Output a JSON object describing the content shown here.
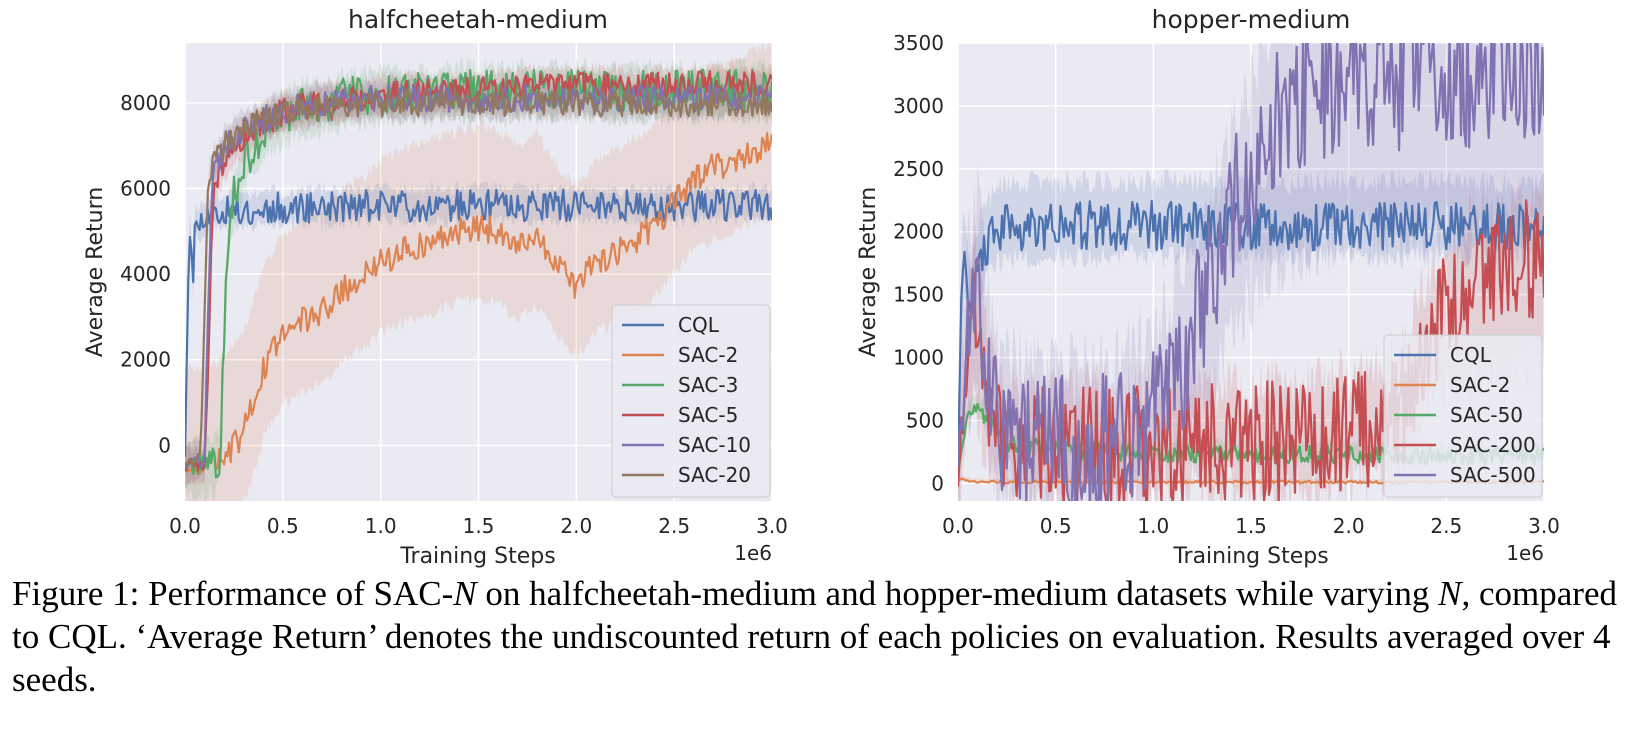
{
  "caption": {
    "p1": "Figure 1: Performance of SAC-",
    "n1": "N",
    "p2": " on halfcheetah-medium and hopper-medium datasets while varying ",
    "n2": "N",
    "p3": ", compared to CQL. ‘Average Return’ denotes the undiscounted return of each policies on evaluation. Results averaged over 4 seeds."
  },
  "chart_data": [
    {
      "type": "line",
      "title": "halfcheetah-medium",
      "xlabel": "Training Steps",
      "ylabel": "Average Return",
      "x_offset_label": "1e6",
      "xlim": [
        0,
        3.0
      ],
      "ylim": [
        -1300,
        9400
      ],
      "x_ticks": [
        "0.0",
        "0.5",
        "1.0",
        "1.5",
        "2.0",
        "2.5",
        "3.0"
      ],
      "x_tick_values": [
        0,
        0.5,
        1.0,
        1.5,
        2.0,
        2.5,
        3.0
      ],
      "y_ticks": [
        "0",
        "2000",
        "4000",
        "6000",
        "8000"
      ],
      "y_tick_values": [
        0,
        2000,
        4000,
        6000,
        8000
      ],
      "grid": true,
      "legend_position": "lower-right",
      "series": [
        {
          "name": "CQL",
          "color": "#4c72b0",
          "x": [
            0,
            0.02,
            0.03,
            0.04,
            0.05,
            0.1,
            0.2,
            0.5,
            1.0,
            1.5,
            2.0,
            2.5,
            3.0
          ],
          "y": [
            -200,
            4800,
            5100,
            3500,
            5100,
            5350,
            5450,
            5550,
            5600,
            5600,
            5600,
            5600,
            5600
          ],
          "band": [
            200,
            150
          ]
        },
        {
          "name": "SAC-2",
          "color": "#dd8452",
          "x": [
            0,
            0.1,
            0.2,
            0.3,
            0.4,
            0.5,
            0.6,
            0.7,
            0.8,
            0.9,
            1.0,
            1.1,
            1.2,
            1.3,
            1.4,
            1.5,
            1.6,
            1.7,
            1.8,
            1.9,
            2.0,
            2.1,
            2.2,
            2.3,
            2.4,
            2.5,
            2.6,
            2.7,
            2.8,
            2.9,
            3.0
          ],
          "y": [
            -500,
            -500,
            -300,
            300,
            1800,
            2600,
            2900,
            3100,
            3600,
            3900,
            4300,
            4500,
            4700,
            4800,
            5000,
            5100,
            5000,
            4600,
            4900,
            4200,
            3700,
            4300,
            4500,
            4800,
            5100,
            5700,
            6200,
            6500,
            6600,
            6900,
            7000
          ],
          "band": [
            2200,
            1500
          ]
        },
        {
          "name": "SAC-3",
          "color": "#55a868",
          "x": [
            0,
            0.1,
            0.15,
            0.18,
            0.2,
            0.22,
            0.25,
            0.3,
            0.4,
            0.5,
            0.6,
            0.8,
            1.0,
            1.5,
            2.0,
            2.5,
            3.0
          ],
          "y": [
            -500,
            -500,
            -400,
            -300,
            2500,
            4800,
            5800,
            6600,
            7300,
            7700,
            7900,
            8100,
            8200,
            8300,
            8300,
            8300,
            8300
          ],
          "band": [
            300,
            400
          ]
        },
        {
          "name": "SAC-5",
          "color": "#c44e52",
          "x": [
            0,
            0.1,
            0.12,
            0.14,
            0.16,
            0.2,
            0.3,
            0.5,
            0.7,
            1.0,
            1.5,
            2.0,
            2.5,
            3.0
          ],
          "y": [
            -500,
            -400,
            2000,
            5500,
            6200,
            6700,
            7200,
            7800,
            8000,
            8200,
            8300,
            8400,
            8400,
            8450
          ],
          "band": [
            250,
            300
          ]
        },
        {
          "name": "SAC-10",
          "color": "#8172b2",
          "x": [
            0,
            0.1,
            0.12,
            0.14,
            0.16,
            0.2,
            0.3,
            0.5,
            0.7,
            1.0,
            1.5,
            2.0,
            2.5,
            3.0
          ],
          "y": [
            -450,
            -300,
            3500,
            6200,
            6500,
            6900,
            7400,
            7800,
            8000,
            8100,
            8100,
            8100,
            8100,
            8150
          ],
          "band": [
            250,
            250
          ]
        },
        {
          "name": "SAC-20",
          "color": "#937860",
          "x": [
            0,
            0.08,
            0.1,
            0.12,
            0.15,
            0.2,
            0.3,
            0.5,
            0.7,
            1.0,
            1.5,
            2.0,
            2.5,
            3.0
          ],
          "y": [
            -500,
            -300,
            3000,
            6300,
            6600,
            7000,
            7400,
            7750,
            7900,
            8000,
            8000,
            8000,
            8000,
            8000
          ],
          "band": [
            250,
            200
          ]
        }
      ]
    },
    {
      "type": "line",
      "title": "hopper-medium",
      "xlabel": "Training Steps",
      "ylabel": "Average Return",
      "x_offset_label": "1e6",
      "xlim": [
        0,
        3.0
      ],
      "ylim": [
        -140,
        3500
      ],
      "x_ticks": [
        "0.0",
        "0.5",
        "1.0",
        "1.5",
        "2.0",
        "2.5",
        "3.0"
      ],
      "x_tick_values": [
        0,
        0.5,
        1.0,
        1.5,
        2.0,
        2.5,
        3.0
      ],
      "y_ticks": [
        "0",
        "500",
        "1000",
        "1500",
        "2000",
        "2500",
        "3000",
        "3500"
      ],
      "y_tick_values": [
        0,
        500,
        1000,
        1500,
        2000,
        2500,
        3000,
        3500
      ],
      "grid": true,
      "legend_position": "lower-right",
      "series": [
        {
          "name": "CQL",
          "color": "#4c72b0",
          "x": [
            0,
            0.02,
            0.04,
            0.06,
            0.1,
            0.15,
            0.2,
            0.3,
            0.5,
            1.0,
            1.5,
            2.0,
            2.5,
            3.0
          ],
          "y": [
            50,
            1700,
            1800,
            1300,
            1700,
            1900,
            2000,
            2050,
            2050,
            2050,
            2050,
            2050,
            2050,
            2050
          ],
          "band": [
            250,
            150
          ]
        },
        {
          "name": "SAC-2",
          "color": "#dd8452",
          "x": [
            0,
            0.02,
            0.05,
            0.1,
            0.5,
            1.0,
            1.5,
            2.0,
            2.5,
            3.0
          ],
          "y": [
            20,
            40,
            20,
            10,
            10,
            10,
            10,
            10,
            10,
            10
          ],
          "band": [
            20,
            0
          ]
        },
        {
          "name": "SAC-50",
          "color": "#55a868",
          "x": [
            0,
            0.05,
            0.1,
            0.15,
            0.2,
            0.25,
            0.3,
            0.5,
            1.0,
            1.5,
            2.0,
            2.5,
            3.0
          ],
          "y": [
            100,
            550,
            600,
            500,
            420,
            330,
            300,
            270,
            240,
            230,
            230,
            220,
            220
          ],
          "band": [
            60,
            0
          ]
        },
        {
          "name": "SAC-200",
          "color": "#c44e52",
          "x": [
            0,
            0.05,
            0.08,
            0.1,
            0.15,
            0.2,
            0.3,
            0.5,
            1.0,
            1.5,
            1.8,
            1.9,
            2.0,
            2.1,
            2.2,
            2.3,
            2.4,
            2.5,
            2.6,
            2.7,
            2.8,
            2.9,
            3.0
          ],
          "y": [
            100,
            1000,
            1500,
            1200,
            700,
            400,
            300,
            280,
            290,
            310,
            330,
            350,
            380,
            420,
            500,
            700,
            1200,
            1400,
            1600,
            1700,
            1750,
            1800,
            1850
          ],
          "band": [
            200,
            0.35
          ]
        },
        {
          "name": "SAC-500",
          "color": "#8172b2",
          "x": [
            0,
            0.05,
            0.1,
            0.15,
            0.2,
            0.3,
            0.5,
            0.8,
            1.0,
            1.1,
            1.2,
            1.3,
            1.4,
            1.5,
            1.6,
            1.7,
            1.8,
            1.9,
            2.0,
            2.1,
            2.2,
            2.4,
            2.6,
            2.8,
            3.0
          ],
          "y": [
            100,
            1200,
            1600,
            900,
            400,
            300,
            280,
            300,
            500,
            800,
            1200,
            1600,
            2100,
            2500,
            2800,
            3000,
            3100,
            3150,
            3180,
            3200,
            3220,
            3240,
            3250,
            3260,
            3270
          ],
          "band": [
            400,
            0.3
          ]
        }
      ]
    }
  ]
}
